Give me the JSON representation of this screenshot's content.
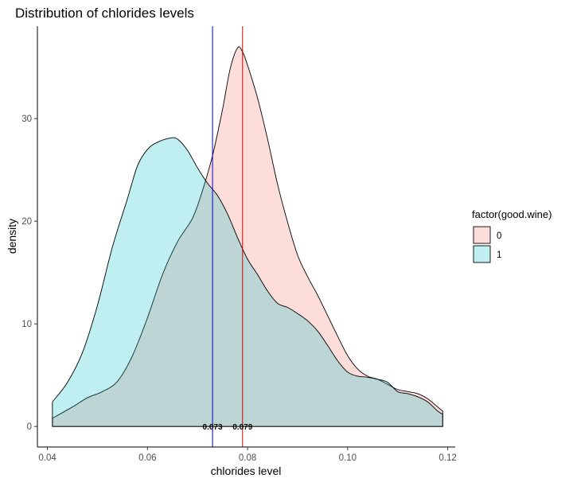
{
  "chart_data": {
    "type": "area",
    "title": "Distribution of chlorides levels",
    "xlabel": "chlorides level",
    "ylabel": "density",
    "xlim": [
      0.038,
      0.1215
    ],
    "ylim": [
      -2,
      39
    ],
    "xticks": [
      0.04,
      0.06,
      0.08,
      0.1,
      0.12
    ],
    "xtick_labels": [
      "0.04",
      "0.06",
      "0.08",
      "0.10",
      "0.12"
    ],
    "yticks": [
      0,
      10,
      20,
      30
    ],
    "ytick_labels": [
      "0",
      "10",
      "20",
      "30"
    ],
    "grid": false,
    "legend": {
      "title": "factor(good.wine)",
      "position": "right",
      "entries": [
        {
          "label": "0",
          "fill": "#F8766D"
        },
        {
          "label": "1",
          "fill": "#00BFC4"
        }
      ]
    },
    "series": [
      {
        "name": "0",
        "fill": "#F8766D",
        "fill_opacity": 0.25,
        "points": [
          [
            0.041,
            0.8
          ],
          [
            0.045,
            1.9
          ],
          [
            0.048,
            2.8
          ],
          [
            0.051,
            3.4
          ],
          [
            0.054,
            4.4
          ],
          [
            0.057,
            6.9
          ],
          [
            0.06,
            10.6
          ],
          [
            0.063,
            14.8
          ],
          [
            0.066,
            18.0
          ],
          [
            0.069,
            20.3
          ],
          [
            0.071,
            23.0
          ],
          [
            0.073,
            26.4
          ],
          [
            0.075,
            30.9
          ],
          [
            0.0765,
            34.8
          ],
          [
            0.078,
            36.9
          ],
          [
            0.079,
            36.5
          ],
          [
            0.08,
            35.2
          ],
          [
            0.082,
            32.0
          ],
          [
            0.084,
            28.0
          ],
          [
            0.086,
            23.6
          ],
          [
            0.088,
            19.9
          ],
          [
            0.09,
            16.7
          ],
          [
            0.092,
            14.6
          ],
          [
            0.094,
            12.8
          ],
          [
            0.096,
            10.8
          ],
          [
            0.098,
            8.8
          ],
          [
            0.1,
            6.9
          ],
          [
            0.102,
            5.6
          ],
          [
            0.104,
            4.9
          ],
          [
            0.106,
            4.6
          ],
          [
            0.108,
            4.1
          ],
          [
            0.11,
            3.6
          ],
          [
            0.112,
            3.4
          ],
          [
            0.114,
            3.2
          ],
          [
            0.116,
            2.7
          ],
          [
            0.118,
            1.9
          ],
          [
            0.119,
            1.5
          ]
        ]
      },
      {
        "name": "1",
        "fill": "#00BFC4",
        "fill_opacity": 0.25,
        "points": [
          [
            0.041,
            2.4
          ],
          [
            0.044,
            4.3
          ],
          [
            0.047,
            7.2
          ],
          [
            0.05,
            11.8
          ],
          [
            0.053,
            17.5
          ],
          [
            0.056,
            22.2
          ],
          [
            0.058,
            25.4
          ],
          [
            0.06,
            27.0
          ],
          [
            0.062,
            27.7
          ],
          [
            0.0645,
            28.1
          ],
          [
            0.066,
            28.0
          ],
          [
            0.068,
            26.9
          ],
          [
            0.07,
            25.2
          ],
          [
            0.072,
            23.7
          ],
          [
            0.074,
            22.5
          ],
          [
            0.076,
            20.7
          ],
          [
            0.078,
            18.4
          ],
          [
            0.08,
            16.3
          ],
          [
            0.082,
            14.8
          ],
          [
            0.084,
            13.2
          ],
          [
            0.086,
            12.0
          ],
          [
            0.088,
            11.6
          ],
          [
            0.09,
            11.0
          ],
          [
            0.092,
            10.3
          ],
          [
            0.094,
            9.3
          ],
          [
            0.096,
            7.9
          ],
          [
            0.098,
            6.4
          ],
          [
            0.1,
            5.3
          ],
          [
            0.102,
            4.9
          ],
          [
            0.104,
            4.8
          ],
          [
            0.106,
            4.6
          ],
          [
            0.108,
            4.3
          ],
          [
            0.11,
            3.4
          ],
          [
            0.112,
            3.2
          ],
          [
            0.114,
            2.9
          ],
          [
            0.116,
            2.4
          ],
          [
            0.118,
            1.5
          ],
          [
            0.119,
            1.2
          ]
        ]
      }
    ],
    "vlines": [
      {
        "x": 0.073,
        "color": "#0000CC",
        "label": "0.073"
      },
      {
        "x": 0.079,
        "color": "#CC0000",
        "label": "0.079"
      }
    ]
  }
}
